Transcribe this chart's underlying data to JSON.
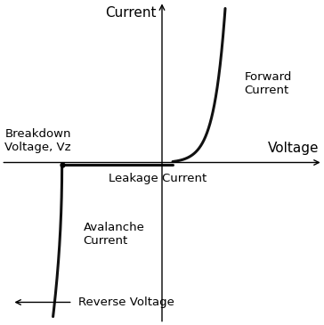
{
  "background_color": "#ffffff",
  "axis_color": "#000000",
  "curve_color": "#111111",
  "curve_linewidth": 2.2,
  "axis_linewidth": 1.0,
  "xlim": [
    -4.5,
    4.5
  ],
  "ylim": [
    -4.5,
    4.5
  ],
  "breakdown_x": -2.8,
  "labels": {
    "current": "Current",
    "voltage": "Voltage",
    "forward_current": "Forward\nCurrent",
    "breakdown_voltage": "Breakdown\nVoltage, Vz",
    "leakage_current": "Leakage Current",
    "avalanche_current": "Avalanche\nCurrent",
    "reverse_voltage": "Reverse Voltage"
  },
  "label_fontsize": 9.5,
  "axis_label_fontsize": 11
}
